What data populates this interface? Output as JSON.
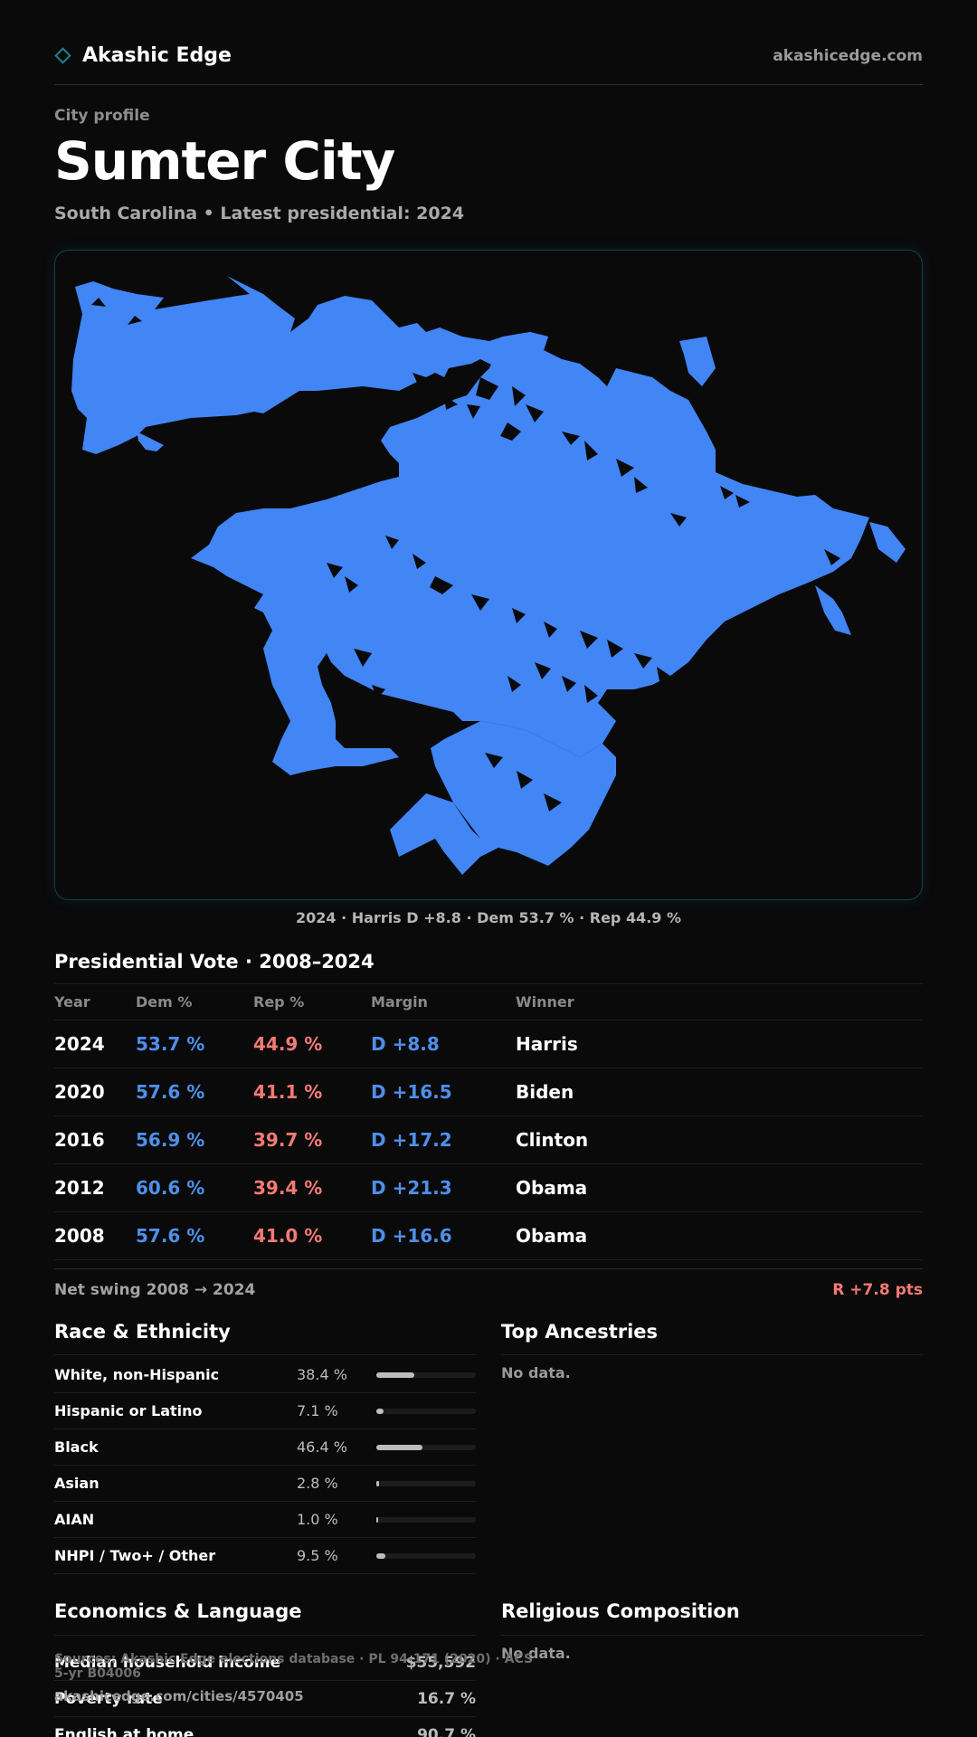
{
  "header": {
    "brand": "Akashic Edge",
    "site": "akashicedge.com",
    "brand_icon": "diamond-icon"
  },
  "profile": {
    "eyebrow": "City profile",
    "title": "Sumter City",
    "subtitle": "South Carolina • Latest presidential: 2024"
  },
  "map": {
    "fill_color": "#4285f4",
    "caption": "2024 · Harris D +8.8 · Dem 53.7 % · Rep 44.9 %"
  },
  "vote": {
    "title": "Presidential Vote · 2008–2024",
    "headers": {
      "year": "Year",
      "dem": "Dem %",
      "rep": "Rep %",
      "margin": "Margin",
      "winner": "Winner"
    },
    "rows": [
      {
        "year": "2024",
        "dem": "53.7 %",
        "rep": "44.9 %",
        "margin": "D +8.8",
        "winner": "Harris"
      },
      {
        "year": "2020",
        "dem": "57.6 %",
        "rep": "41.1 %",
        "margin": "D +16.5",
        "winner": "Biden"
      },
      {
        "year": "2016",
        "dem": "56.9 %",
        "rep": "39.7 %",
        "margin": "D +17.2",
        "winner": "Clinton"
      },
      {
        "year": "2012",
        "dem": "60.6 %",
        "rep": "39.4 %",
        "margin": "D +21.3",
        "winner": "Obama"
      },
      {
        "year": "2008",
        "dem": "57.6 %",
        "rep": "41.0 %",
        "margin": "D +16.6",
        "winner": "Obama"
      }
    ],
    "swing_label": "Net swing 2008 → 2024",
    "swing_value": "R +7.8 pts"
  },
  "race": {
    "title": "Race & Ethnicity",
    "rows": [
      {
        "label": "White, non-Hispanic",
        "pct": "38.4 %",
        "share": 0.384
      },
      {
        "label": "Hispanic or Latino",
        "pct": "7.1 %",
        "share": 0.071
      },
      {
        "label": "Black",
        "pct": "46.4 %",
        "share": 0.464
      },
      {
        "label": "Asian",
        "pct": "2.8 %",
        "share": 0.028
      },
      {
        "label": "AIAN",
        "pct": "1.0 %",
        "share": 0.01
      },
      {
        "label": "NHPI / Two+ / Other",
        "pct": "9.5 %",
        "share": 0.095
      }
    ]
  },
  "ancestries": {
    "title": "Top Ancestries",
    "empty": "No data."
  },
  "economics": {
    "title": "Economics & Language",
    "rows": [
      {
        "label": "Median household income",
        "value": "$55,592"
      },
      {
        "label": "Poverty rate",
        "value": "16.7 %"
      },
      {
        "label": "English at home",
        "value": "90.7 %"
      }
    ]
  },
  "religion": {
    "title": "Religious Composition",
    "empty": "No data."
  },
  "footer": {
    "sources": "Sources: Akashic Edge elections database · PL 94-171 (2020) · ACS 5-yr B04006",
    "url": "akashicedge.com/cities/4570405"
  }
}
